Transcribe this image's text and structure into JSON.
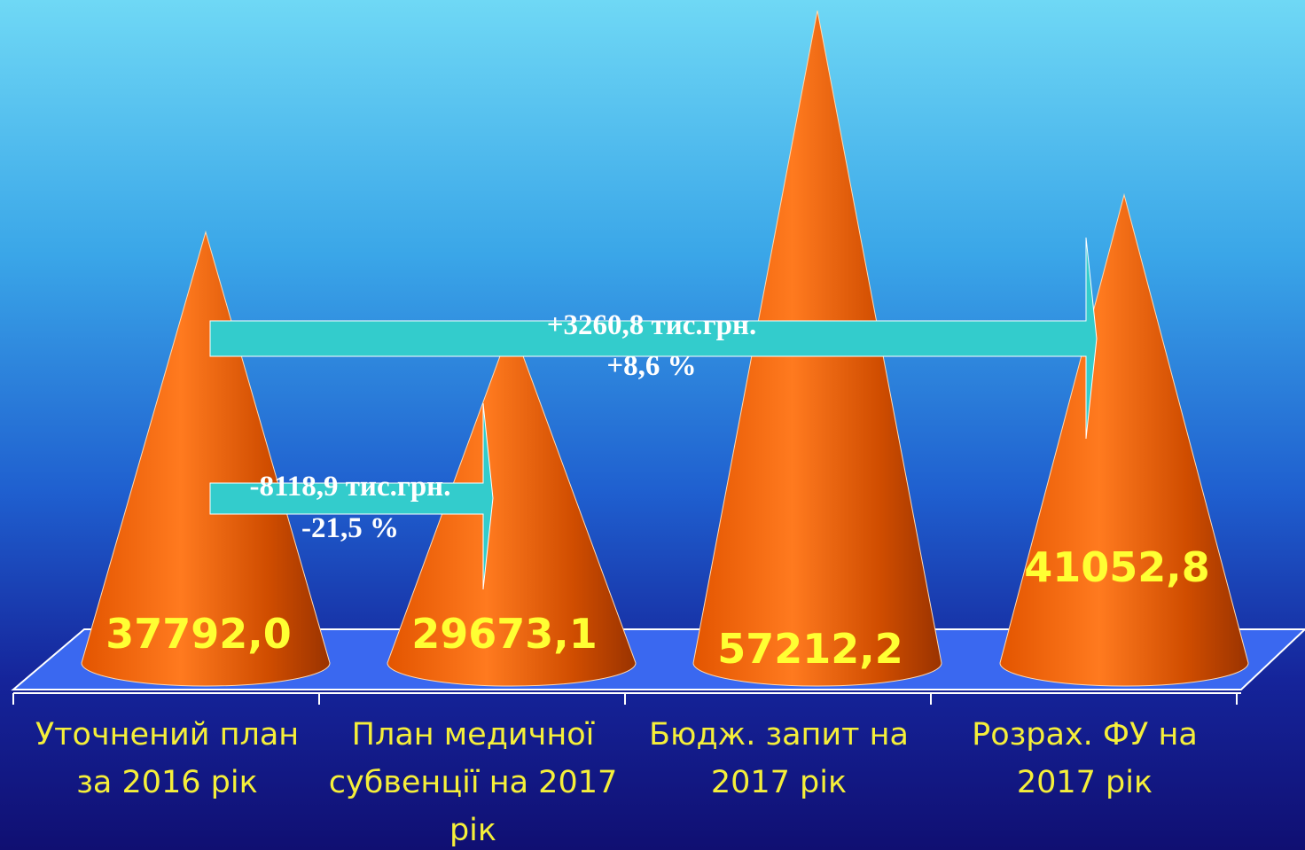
{
  "chart_data": {
    "type": "bar",
    "categories": [
      "Уточнений план за 2016 рік",
      "План медичної субвенції на 2017 рік",
      "Бюдж. запит на 2017 рік",
      "Розрах. ФУ на 2017 рік"
    ],
    "values": [
      37792.0,
      29673.1,
      57212.2,
      41052.8
    ],
    "value_labels": [
      "37792,0",
      "29673,1",
      "57212,2",
      "41052,8"
    ],
    "color": "#ff6a10",
    "annotations": [
      "+3260,8 тис.грн.",
      "+8,6 %",
      "-8118,9 тис.грн.",
      "-21,5 %"
    ]
  }
}
